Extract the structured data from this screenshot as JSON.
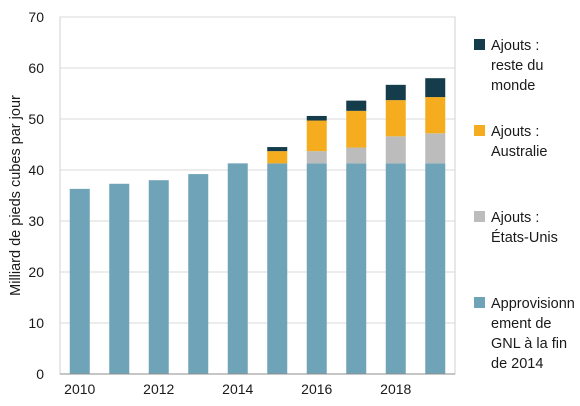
{
  "chart_data": {
    "type": "bar",
    "stacked": true,
    "ylabel": "Milliard de pieds cubes par jour",
    "xlabel": "",
    "ylim": [
      0,
      70
    ],
    "yticks": [
      0,
      10,
      20,
      30,
      40,
      50,
      60,
      70
    ],
    "x_tick_labels": [
      "2010",
      "2012",
      "2014",
      "2016",
      "2018"
    ],
    "categories": [
      "2010",
      "2011",
      "2012",
      "2013",
      "2014",
      "2015",
      "2016",
      "2017",
      "2018",
      "2019"
    ],
    "series": [
      {
        "name": "Approvisionnement de GNL à la fin de 2014",
        "color": "#6fa4b8",
        "values": [
          36.3,
          37.3,
          38.0,
          39.2,
          41.3,
          41.3,
          41.3,
          41.3,
          41.3,
          41.3
        ]
      },
      {
        "name": "Ajouts : États-Unis",
        "color": "#bcbcbc",
        "values": [
          0,
          0,
          0,
          0,
          0,
          0,
          2.4,
          3.1,
          5.3,
          5.9
        ]
      },
      {
        "name": "Ajouts : Australie",
        "color": "#f5ad1f",
        "values": [
          0,
          0,
          0,
          0,
          0,
          2.4,
          6.0,
          7.2,
          7.1,
          7.1
        ]
      },
      {
        "name": "Ajouts : reste du monde",
        "color": "#143c4b",
        "values": [
          0,
          0,
          0,
          0,
          0,
          0.8,
          0.9,
          2.0,
          3.0,
          3.7
        ]
      }
    ],
    "legend_position": "right",
    "grid": "horizontal"
  },
  "legend": {
    "items": [
      {
        "lines": [
          "Ajouts :",
          "reste du",
          "monde"
        ],
        "color": "#143c4b"
      },
      {
        "lines": [
          "Ajouts :",
          "Australie"
        ],
        "color": "#f5ad1f"
      },
      {
        "lines": [
          "Ajouts :",
          "États-Unis"
        ],
        "color": "#bcbcbc"
      },
      {
        "lines": [
          "Approvisionn",
          "ement de",
          "GNL à la fin",
          "de 2014"
        ],
        "color": "#6fa4b8"
      }
    ]
  }
}
